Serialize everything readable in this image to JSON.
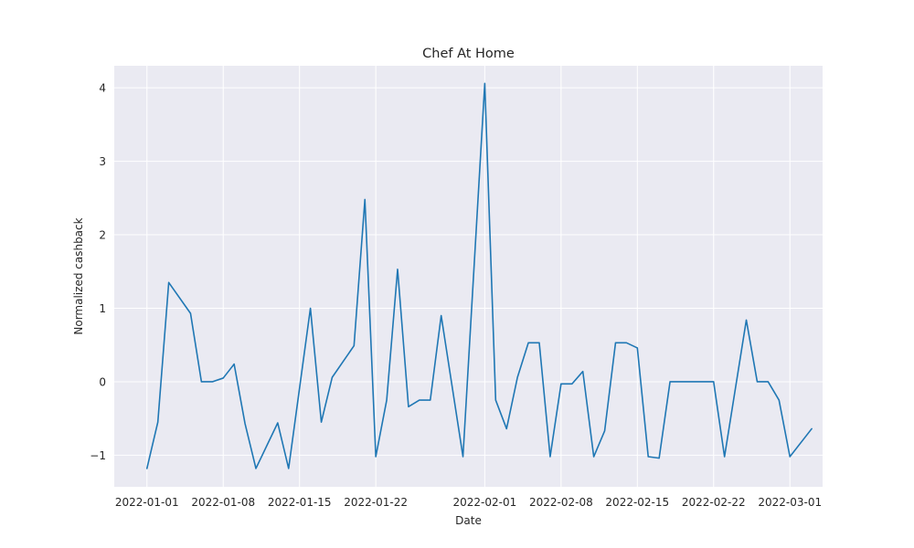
{
  "chart_data": {
    "type": "line",
    "title": "Chef At Home",
    "xlabel": "Date",
    "ylabel": "Normalized cashback",
    "grid": true,
    "style": "seaborn-darkgrid",
    "colors": {
      "line": "#1f77b4",
      "plot_bg": "#eaeaf2",
      "grid": "#ffffff",
      "text": "#262626"
    },
    "xlim": [
      "2021-12-29",
      "2022-03-04"
    ],
    "ylim": [
      -1.43,
      4.3
    ],
    "x_ticks": [
      {
        "date": "2022-01-01",
        "label": "2022-01-01"
      },
      {
        "date": "2022-01-08",
        "label": "2022-01-08"
      },
      {
        "date": "2022-01-15",
        "label": "2022-01-15"
      },
      {
        "date": "2022-01-22",
        "label": "2022-01-22"
      },
      {
        "date": "2022-02-01",
        "label": "2022-02-01"
      },
      {
        "date": "2022-02-08",
        "label": "2022-02-08"
      },
      {
        "date": "2022-02-15",
        "label": "2022-02-15"
      },
      {
        "date": "2022-02-22",
        "label": "2022-02-22"
      },
      {
        "date": "2022-03-01",
        "label": "2022-03-01"
      }
    ],
    "y_ticks": [
      {
        "value": -1,
        "label": "−1"
      },
      {
        "value": 0,
        "label": "0"
      },
      {
        "value": 1,
        "label": "1"
      },
      {
        "value": 2,
        "label": "2"
      },
      {
        "value": 3,
        "label": "3"
      },
      {
        "value": 4,
        "label": "4"
      }
    ],
    "series": [
      {
        "name": "Normalized cashback",
        "x": [
          "2022-01-01",
          "2022-01-02",
          "2022-01-03",
          "2022-01-05",
          "2022-01-06",
          "2022-01-07",
          "2022-01-08",
          "2022-01-09",
          "2022-01-10",
          "2022-01-11",
          "2022-01-13",
          "2022-01-14",
          "2022-01-16",
          "2022-01-17",
          "2022-01-18",
          "2022-01-20",
          "2022-01-21",
          "2022-01-22",
          "2022-01-23",
          "2022-01-24",
          "2022-01-25",
          "2022-01-26",
          "2022-01-27",
          "2022-01-28",
          "2022-01-30",
          "2022-02-01",
          "2022-02-02",
          "2022-02-03",
          "2022-02-04",
          "2022-02-05",
          "2022-02-06",
          "2022-02-07",
          "2022-02-08",
          "2022-02-09",
          "2022-02-10",
          "2022-02-11",
          "2022-02-12",
          "2022-02-13",
          "2022-02-14",
          "2022-02-15",
          "2022-02-16",
          "2022-02-17",
          "2022-02-18",
          "2022-02-22",
          "2022-02-23",
          "2022-02-25",
          "2022-02-26",
          "2022-02-27",
          "2022-02-28",
          "2022-03-01",
          "2022-03-03"
        ],
        "values": [
          -1.18,
          -0.55,
          1.35,
          0.93,
          0.0,
          0.0,
          0.05,
          0.24,
          -0.57,
          -1.18,
          -0.56,
          -1.18,
          1.0,
          -0.55,
          0.06,
          0.49,
          2.48,
          -1.02,
          -0.25,
          1.53,
          -0.34,
          -0.25,
          -0.25,
          0.9,
          -1.02,
          4.06,
          -0.25,
          -0.64,
          0.06,
          0.53,
          0.53,
          -1.02,
          -0.03,
          -0.03,
          0.14,
          -1.02,
          -0.67,
          0.53,
          0.53,
          0.46,
          -1.02,
          -1.04,
          0.0,
          0.0,
          -1.02,
          0.84,
          0.0,
          0.0,
          -0.25,
          -1.02,
          -0.64
        ]
      }
    ]
  }
}
